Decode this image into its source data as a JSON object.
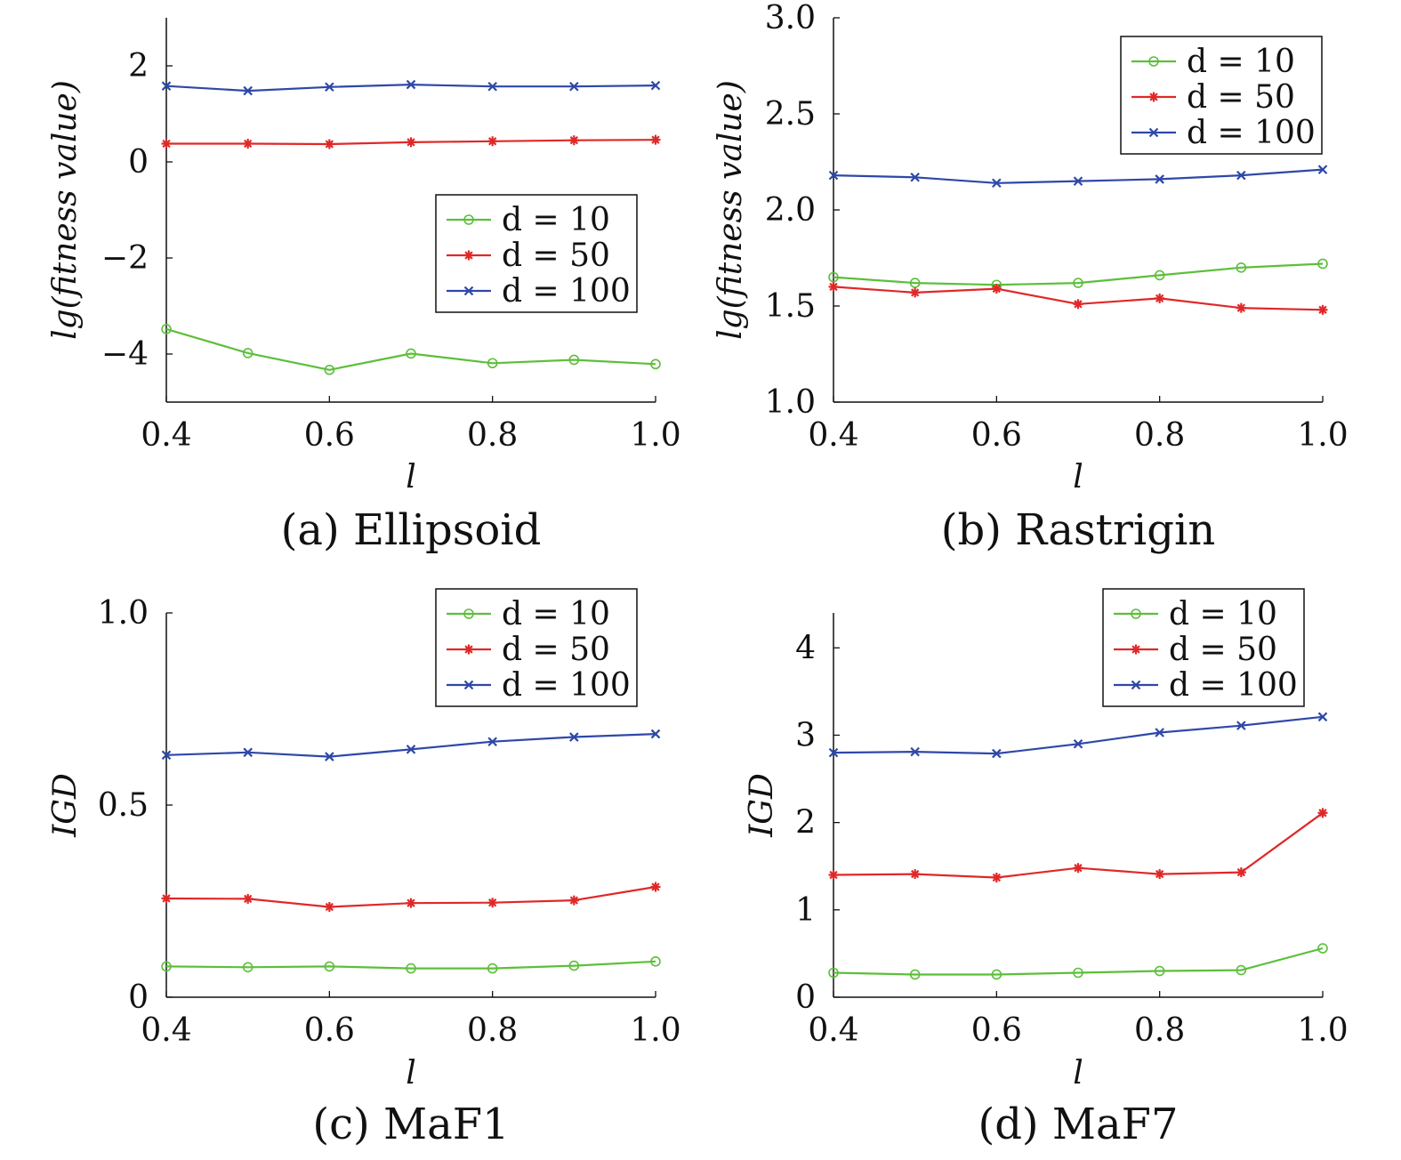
{
  "colors": {
    "d10": "#5cbf3a",
    "d50": "#e02828",
    "d100": "#2e48a8"
  },
  "chart_data": [
    {
      "type": "line",
      "caption": "(a) Ellipsoid",
      "xlabel": "l",
      "ylabel": "lg(fitness value)",
      "xlim": [
        0.4,
        1.0
      ],
      "ylim": [
        -5,
        3
      ],
      "xticks": [
        "0.4",
        "0.6",
        "0.8",
        "1.0"
      ],
      "yticks": [
        "−4",
        "−2",
        "0",
        "2"
      ],
      "legend_position": "center-right",
      "x": [
        0.4,
        0.5,
        0.6,
        0.7,
        0.8,
        0.9,
        1.0
      ],
      "series": [
        {
          "name": "d = 10",
          "key": "d10",
          "marker": "circle",
          "values": [
            -3.48,
            -3.98,
            -4.33,
            -3.99,
            -4.19,
            -4.12,
            -4.21
          ]
        },
        {
          "name": "d = 50",
          "key": "d50",
          "marker": "star",
          "values": [
            0.38,
            0.38,
            0.37,
            0.41,
            0.43,
            0.45,
            0.46
          ]
        },
        {
          "name": "d = 100",
          "key": "d100",
          "marker": "x",
          "values": [
            1.58,
            1.48,
            1.56,
            1.61,
            1.57,
            1.57,
            1.59
          ]
        }
      ]
    },
    {
      "type": "line",
      "caption": "(b) Rastrigin",
      "xlabel": "l",
      "ylabel": "lg(fitness value)",
      "xlim": [
        0.4,
        1.0
      ],
      "ylim": [
        1.0,
        3.0
      ],
      "xticks": [
        "0.4",
        "0.6",
        "0.8",
        "1.0"
      ],
      "yticks": [
        "1.0",
        "1.5",
        "2.0",
        "2.5",
        "3.0"
      ],
      "legend_position": "top-right",
      "x": [
        0.4,
        0.5,
        0.6,
        0.7,
        0.8,
        0.9,
        1.0
      ],
      "series": [
        {
          "name": "d = 10",
          "key": "d10",
          "marker": "circle",
          "values": [
            1.65,
            1.62,
            1.61,
            1.62,
            1.66,
            1.7,
            1.72
          ]
        },
        {
          "name": "d = 50",
          "key": "d50",
          "marker": "star",
          "values": [
            1.6,
            1.57,
            1.59,
            1.51,
            1.54,
            1.49,
            1.48
          ]
        },
        {
          "name": "d = 100",
          "key": "d100",
          "marker": "x",
          "values": [
            2.18,
            2.17,
            2.14,
            2.15,
            2.16,
            2.18,
            2.21
          ]
        }
      ]
    },
    {
      "type": "line",
      "caption": "(c) MaF1",
      "xlabel": "l",
      "ylabel": "IGD",
      "xlim": [
        0.4,
        1.0
      ],
      "ylim": [
        0,
        1.0
      ],
      "xticks": [
        "0.4",
        "0.6",
        "0.8",
        "1.0"
      ],
      "yticks": [
        "0",
        "0.5",
        "1.0"
      ],
      "legend_position": "top-right",
      "x": [
        0.4,
        0.5,
        0.6,
        0.7,
        0.8,
        0.9,
        1.0
      ],
      "series": [
        {
          "name": "d = 10",
          "key": "d10",
          "marker": "circle",
          "values": [
            0.08,
            0.078,
            0.08,
            0.075,
            0.075,
            0.082,
            0.093
          ]
        },
        {
          "name": "d = 50",
          "key": "d50",
          "marker": "star",
          "values": [
            0.257,
            0.256,
            0.235,
            0.245,
            0.246,
            0.252,
            0.287
          ]
        },
        {
          "name": "d = 100",
          "key": "d100",
          "marker": "x",
          "values": [
            0.63,
            0.637,
            0.626,
            0.645,
            0.665,
            0.677,
            0.685
          ]
        }
      ]
    },
    {
      "type": "line",
      "caption": "(d) MaF7",
      "xlabel": "l",
      "ylabel": "IGD",
      "xlim": [
        0.4,
        1.0
      ],
      "ylim": [
        0,
        4.4
      ],
      "xticks": [
        "0.4",
        "0.6",
        "0.8",
        "1.0"
      ],
      "yticks": [
        "0",
        "1",
        "2",
        "3",
        "4"
      ],
      "legend_position": "top-right",
      "x": [
        0.4,
        0.5,
        0.6,
        0.7,
        0.8,
        0.9,
        1.0
      ],
      "series": [
        {
          "name": "d = 10",
          "key": "d10",
          "marker": "circle",
          "values": [
            0.28,
            0.26,
            0.26,
            0.28,
            0.3,
            0.31,
            0.56
          ]
        },
        {
          "name": "d = 50",
          "key": "d50",
          "marker": "star",
          "values": [
            1.4,
            1.41,
            1.37,
            1.48,
            1.41,
            1.43,
            2.11
          ]
        },
        {
          "name": "d = 100",
          "key": "d100",
          "marker": "x",
          "values": [
            2.8,
            2.81,
            2.79,
            2.9,
            3.03,
            3.11,
            3.21
          ]
        }
      ]
    }
  ]
}
